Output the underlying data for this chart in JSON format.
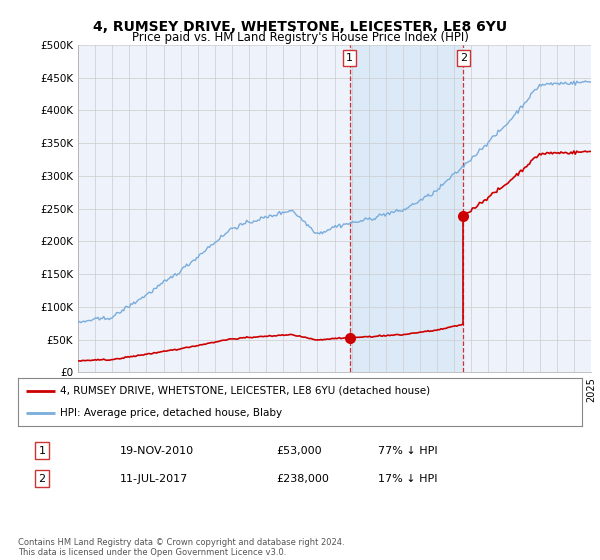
{
  "title": "4, RUMSEY DRIVE, WHETSTONE, LEICESTER, LE8 6YU",
  "subtitle": "Price paid vs. HM Land Registry's House Price Index (HPI)",
  "ylim": [
    0,
    500000
  ],
  "yticks": [
    0,
    50000,
    100000,
    150000,
    200000,
    250000,
    300000,
    350000,
    400000,
    450000,
    500000
  ],
  "ytick_labels": [
    "£0",
    "£50K",
    "£100K",
    "£150K",
    "£200K",
    "£250K",
    "£300K",
    "£350K",
    "£400K",
    "£450K",
    "£500K"
  ],
  "hpi_color": "#7aaddc",
  "price_color": "#cc0000",
  "background_color": "#ffffff",
  "plot_bg_color": "#eef2fa",
  "shade_color": "#d8e8f8",
  "grid_color": "#cccccc",
  "purchase1_date": 2010.89,
  "purchase1_price": 53000,
  "purchase1_label": "1",
  "purchase2_date": 2017.53,
  "purchase2_price": 238000,
  "purchase2_label": "2",
  "legend_line1": "4, RUMSEY DRIVE, WHETSTONE, LEICESTER, LE8 6YU (detached house)",
  "legend_line2": "HPI: Average price, detached house, Blaby",
  "table_row1_num": "1",
  "table_row1_date": "19-NOV-2010",
  "table_row1_price": "£53,000",
  "table_row1_hpi": "77% ↓ HPI",
  "table_row2_num": "2",
  "table_row2_date": "11-JUL-2017",
  "table_row2_price": "£238,000",
  "table_row2_hpi": "17% ↓ HPI",
  "footer": "Contains HM Land Registry data © Crown copyright and database right 2024.\nThis data is licensed under the Open Government Licence v3.0.",
  "xmin": 1995,
  "xmax": 2025
}
